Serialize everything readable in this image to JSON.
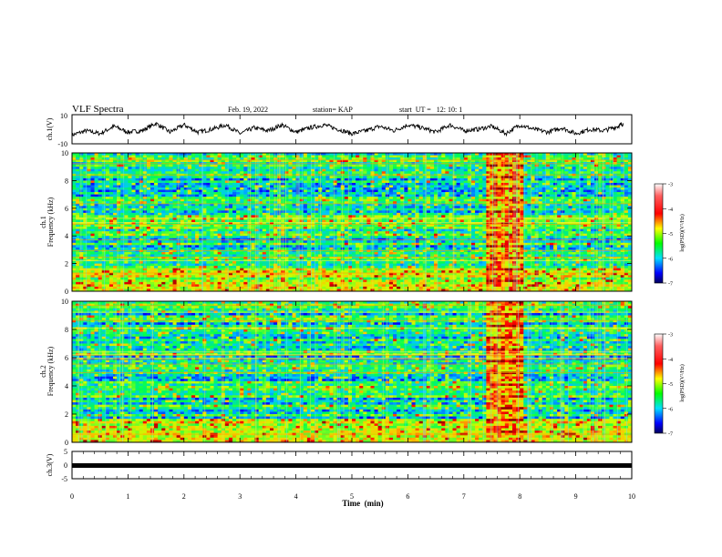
{
  "header": {
    "title": "VLF Spectra",
    "date": "Feb. 19, 2022",
    "station": "station= KAP",
    "start_ut": "start  UT =   12: 10: 1"
  },
  "colorbar": {
    "label": "log(PSD)(V²/Hz)",
    "ticks": [
      "-3",
      "-4",
      "-5",
      "-6",
      "-7"
    ],
    "colors": [
      "#7a0000",
      "#ff0000",
      "#ffff00",
      "#00ff00",
      "#00ffff",
      "#0000ff",
      "#00007a"
    ]
  },
  "chart_data": [
    {
      "type": "line",
      "panel": "ch.1",
      "ylabel": "ch.1(V)",
      "ylim": [
        -10,
        10
      ],
      "ytick_labels": [
        "10",
        "-10"
      ],
      "xlim": [
        0,
        10
      ],
      "series": [
        {
          "x": [
            0,
            0.25,
            0.5,
            0.75,
            1.0,
            1.25,
            1.5,
            1.75,
            2.0,
            2.25,
            2.5,
            2.75,
            3.0,
            3.25,
            3.5,
            3.75,
            4.0,
            4.25,
            4.5,
            4.75,
            5.0,
            5.25,
            5.5,
            5.75,
            6.0,
            6.25,
            6.5,
            6.75,
            7.0,
            7.25,
            7.5,
            7.75,
            8.0,
            8.25,
            8.5,
            8.75,
            9.0,
            9.25,
            9.5,
            9.75,
            9.85
          ],
          "y": [
            -4,
            -1,
            -3,
            2,
            -2,
            -1,
            4,
            -2,
            3,
            -2,
            0,
            3,
            -3,
            1,
            -1,
            3,
            -2,
            1,
            3,
            0,
            -3,
            -1,
            2,
            -1,
            3,
            1,
            -2,
            3,
            -1,
            0,
            2,
            -3,
            3,
            0,
            -2,
            1,
            -3,
            0,
            -1,
            2,
            4
          ]
        }
      ]
    },
    {
      "type": "heatmap",
      "panel": "ch.1",
      "ylabel": "ch.1 Frequency (kHz)",
      "ylim": [
        0,
        10
      ],
      "ytick_labels": [
        "0",
        "2",
        "4",
        "6",
        "8",
        "10"
      ],
      "xlim": [
        0,
        10
      ],
      "zlabel": "log(PSD)(V²/Hz)",
      "zlim": [
        -7,
        -3
      ],
      "note_band": {
        "x_start": 7.4,
        "x_end": 8.05
      }
    },
    {
      "type": "heatmap",
      "panel": "ch.2",
      "ylabel": "ch.2 Frequency (kHz)",
      "ylim": [
        0,
        10
      ],
      "ytick_labels": [
        "0",
        "2",
        "4",
        "6",
        "8",
        "10"
      ],
      "xlim": [
        0,
        10
      ],
      "zlabel": "log(PSD)(V²/Hz)",
      "zlim": [
        -7,
        -3
      ],
      "note_band": {
        "x_start": 7.4,
        "x_end": 8.05
      }
    },
    {
      "type": "line",
      "panel": "ch.3",
      "ylabel": "ch.3(V)",
      "ylim": [
        -5,
        5
      ],
      "ytick_labels": [
        "5",
        "0",
        "-5"
      ],
      "xlim": [
        0,
        10
      ],
      "xlabel": "Time  (min)",
      "xtick_labels": [
        "0",
        "1",
        "2",
        "3",
        "4",
        "5",
        "6",
        "7",
        "8",
        "9",
        "10"
      ],
      "series": [
        {
          "x": [
            0,
            9.85
          ],
          "y": [
            0,
            0
          ]
        }
      ]
    }
  ]
}
